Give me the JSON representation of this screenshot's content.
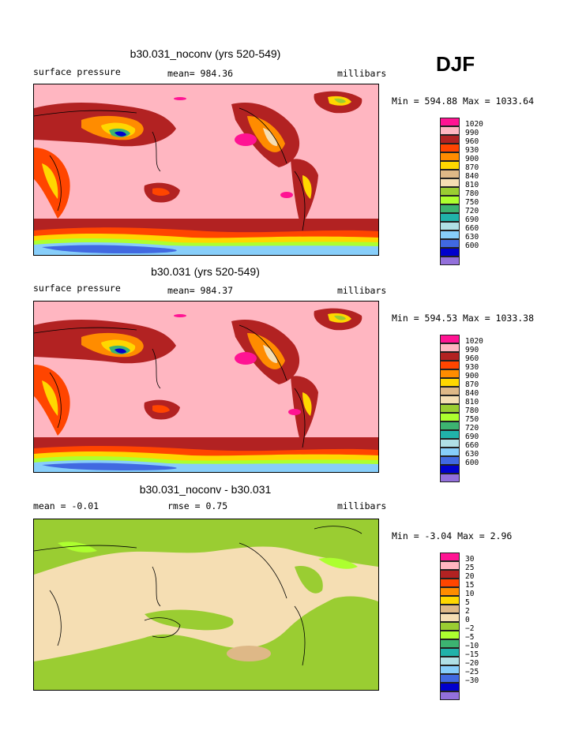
{
  "season": "DJF",
  "panels": [
    {
      "title": "b30.031_noconv (yrs 520-549)",
      "left_label": "surface pressure",
      "center_label": "mean= 984.36",
      "right_label": "millibars",
      "minmax": "Min = 594.88 Max = 1033.64",
      "variant": "pressure"
    },
    {
      "title": "b30.031 (yrs 520-549)",
      "left_label": "surface pressure",
      "center_label": "mean= 984.37",
      "right_label": "millibars",
      "minmax": "Min = 594.53 Max = 1033.38",
      "variant": "pressure"
    },
    {
      "title": "b30.031_noconv - b30.031",
      "left_label": "mean =   -0.01",
      "center_label": "rmse =    0.75",
      "right_label": "millibars",
      "minmax": "Min =  -3.04 Max =    2.96",
      "variant": "diff"
    }
  ],
  "legend_pressure": {
    "colors": [
      "#ff1493",
      "#ffb6c1",
      "#b22222",
      "#ff4500",
      "#ff8c00",
      "#ffd700",
      "#deb887",
      "#f5deb3",
      "#9acd32",
      "#adff2f",
      "#3cb371",
      "#20b2aa",
      "#b0e0e6",
      "#87cefa",
      "#4169e1",
      "#0000cd",
      "#9370db"
    ],
    "labels": [
      "1020",
      "990",
      "960",
      "930",
      "900",
      "870",
      "840",
      "810",
      "780",
      "750",
      "720",
      "690",
      "660",
      "630",
      "600"
    ]
  },
  "legend_diff": {
    "colors": [
      "#ff1493",
      "#ffb6c1",
      "#b22222",
      "#ff4500",
      "#ff8c00",
      "#ffd700",
      "#deb887",
      "#f5deb3",
      "#9acd32",
      "#adff2f",
      "#3cb371",
      "#20b2aa",
      "#b0e0e6",
      "#87cefa",
      "#4169e1",
      "#0000cd",
      "#9370db"
    ],
    "labels": [
      "30",
      "25",
      "20",
      "15",
      "10",
      "5",
      "2",
      "0",
      "−2",
      "−5",
      "−10",
      "−15",
      "−20",
      "−25",
      "−30"
    ]
  }
}
